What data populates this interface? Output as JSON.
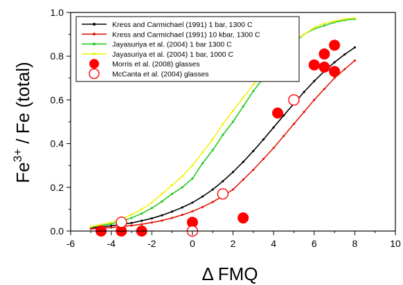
{
  "chart_data": {
    "type": "line",
    "title": "",
    "xlabel": "Δ FMQ",
    "ylabel": "Fe3+ / Fe (total)",
    "xlim": [
      -6,
      10
    ],
    "ylim": [
      0,
      1.0
    ],
    "xticks": [
      -6,
      -4,
      -2,
      0,
      2,
      4,
      6,
      8,
      10
    ],
    "yticks": [
      0.0,
      0.2,
      0.4,
      0.6,
      0.8,
      1.0
    ],
    "xtick_labels": [
      "-6",
      "-4",
      "-2",
      "0",
      "2",
      "4",
      "6",
      "8",
      "10"
    ],
    "ytick_labels": [
      "0.0",
      "0.2",
      "0.4",
      "0.6",
      "0.8",
      "1.0"
    ],
    "grid": false,
    "legend_position": "top-left",
    "series": [
      {
        "name": "Kress and Carmichael (1991) 1 bar, 1300 C",
        "kind": "line",
        "color": "#000000",
        "x": [
          -5,
          -4.5,
          -4,
          -3.5,
          -3,
          -2.5,
          -2,
          -1.5,
          -1,
          -0.5,
          0,
          0.5,
          1,
          1.5,
          2,
          2.5,
          3,
          3.5,
          4,
          4.5,
          5,
          5.5,
          6,
          6.5,
          7,
          7.5,
          8
        ],
        "y": [
          0.015,
          0.019,
          0.024,
          0.03,
          0.037,
          0.047,
          0.058,
          0.072,
          0.089,
          0.108,
          0.13,
          0.158,
          0.19,
          0.228,
          0.27,
          0.316,
          0.366,
          0.419,
          0.474,
          0.529,
          0.583,
          0.636,
          0.686,
          0.731,
          0.772,
          0.808,
          0.84
        ]
      },
      {
        "name": "Kress and Carmichael (1991) 10 kbar, 1300 C",
        "kind": "line",
        "color": "#e3170a",
        "x": [
          -5,
          -4.5,
          -4,
          -3.5,
          -3,
          -2.5,
          -2,
          -1.5,
          -1,
          -0.5,
          0,
          0.5,
          1,
          1.5,
          2,
          2.5,
          3,
          3.5,
          4,
          4.5,
          5,
          5.5,
          6,
          6.5,
          7,
          7.5,
          8
        ],
        "y": [
          0.01,
          0.013,
          0.016,
          0.02,
          0.025,
          0.031,
          0.039,
          0.048,
          0.06,
          0.074,
          0.09,
          0.11,
          0.133,
          0.16,
          0.19,
          0.235,
          0.28,
          0.33,
          0.38,
          0.435,
          0.49,
          0.545,
          0.6,
          0.65,
          0.7,
          0.74,
          0.78
        ]
      },
      {
        "name": "Jayasuriya et al. (2004) 1 bar 1300 C",
        "kind": "line",
        "color": "#22c922",
        "x": [
          -5,
          -4.5,
          -4,
          -3.5,
          -3,
          -2.5,
          -2,
          -1.5,
          -1,
          -0.5,
          0,
          0.5,
          1,
          1.5,
          2,
          2.5,
          3,
          3.5,
          4,
          4.5,
          5,
          5.5,
          6,
          6.5,
          7,
          7.5,
          8
        ],
        "y": [
          0.018,
          0.025,
          0.033,
          0.045,
          0.06,
          0.08,
          0.105,
          0.135,
          0.17,
          0.2,
          0.24,
          0.31,
          0.37,
          0.44,
          0.5,
          0.57,
          0.64,
          0.7,
          0.76,
          0.81,
          0.86,
          0.9,
          0.925,
          0.94,
          0.955,
          0.965,
          0.97
        ]
      },
      {
        "name": "Jayasuriya et al. (2004) 1 bar, 1000 C",
        "kind": "line",
        "color": "#f2f20f",
        "x": [
          -5,
          -4.5,
          -4,
          -3.5,
          -3,
          -2.5,
          -2,
          -1.5,
          -1,
          -0.5,
          0,
          0.5,
          1,
          1.5,
          2,
          2.5,
          3,
          3.5,
          4,
          4.5,
          5,
          5.5,
          6,
          6.5,
          7,
          7.5,
          8
        ],
        "y": [
          0.02,
          0.03,
          0.04,
          0.055,
          0.075,
          0.1,
          0.13,
          0.17,
          0.21,
          0.25,
          0.3,
          0.36,
          0.42,
          0.49,
          0.55,
          0.61,
          0.67,
          0.73,
          0.78,
          0.83,
          0.87,
          0.9,
          0.93,
          0.95,
          0.96,
          0.97,
          0.975
        ]
      },
      {
        "name": "Morris et al. (2008) glasses",
        "kind": "scatter",
        "marker": "filled-circle",
        "color": "#ff0000",
        "x": [
          -4.5,
          -3.5,
          -2.5,
          0,
          2.5,
          4.2,
          6,
          6.5,
          6.5,
          7,
          7
        ],
        "y": [
          0.0,
          0.0,
          0.0,
          0.04,
          0.06,
          0.54,
          0.76,
          0.81,
          0.75,
          0.85,
          0.73
        ],
        "yerr": [
          0.01,
          0.01,
          0.01,
          0.02,
          0.02,
          0.02,
          0.02,
          0.02,
          0.02,
          0.02,
          0.02
        ]
      },
      {
        "name": "McCanta et al. (2004) glasses",
        "kind": "scatter",
        "marker": "open-circle",
        "color": "#ff0000",
        "x": [
          -3.5,
          0,
          1.5,
          5
        ],
        "y": [
          0.04,
          0.0,
          0.17,
          0.6
        ]
      }
    ]
  }
}
